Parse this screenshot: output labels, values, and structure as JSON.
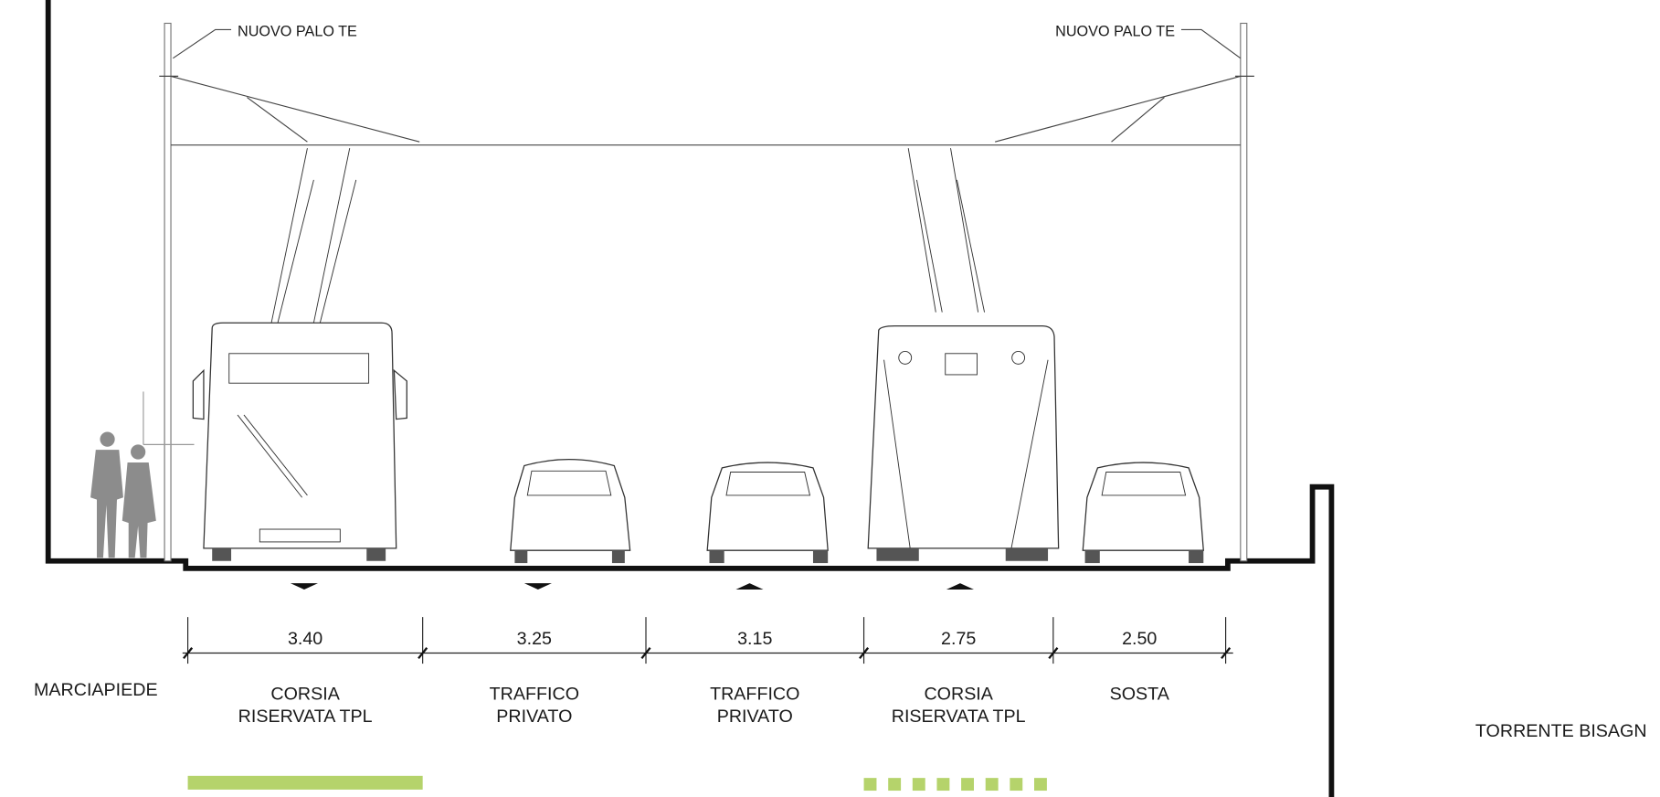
{
  "poles": [
    {
      "label": "NUOVO PALO TE"
    },
    {
      "label": "NUOVO PALO TE"
    }
  ],
  "sidewalk": "MARCIAPIEDE",
  "lanes": [
    {
      "width": "3.40",
      "name": [
        "CORSIA",
        "RISERVATA TPL"
      ]
    },
    {
      "width": "3.25",
      "name": [
        "TRAFFICO",
        "PRIVATO"
      ]
    },
    {
      "width": "3.15",
      "name": [
        "TRAFFICO",
        "PRIVATO"
      ]
    },
    {
      "width": "2.75",
      "name": [
        "CORSIA",
        "RISERVATA TPL"
      ]
    },
    {
      "width": "2.50",
      "name": [
        "SOSTA"
      ]
    }
  ],
  "river": "TORRENTE BISAGN"
}
